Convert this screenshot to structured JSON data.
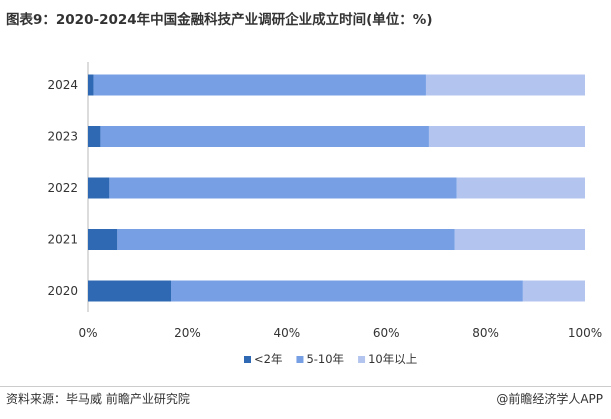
{
  "title": "图表9：2020-2024年中国金融科技产业调研企业成立时间(单位：%)",
  "source": "资料来源：毕马威 前瞻产业研究院",
  "brand": "@前瞻经济学人APP",
  "chart_data": {
    "type": "bar",
    "orientation": "horizontal",
    "stacked": true,
    "categories": [
      "2024",
      "2023",
      "2022",
      "2021",
      "2020"
    ],
    "series": [
      {
        "name": "<2年",
        "color": "#2f69b3",
        "values": [
          1.1,
          2.5,
          4.3,
          5.9,
          16.7
        ]
      },
      {
        "name": "5-10年",
        "color": "#769fe4",
        "values": [
          66.9,
          66.1,
          69.9,
          67.9,
          70.8
        ]
      },
      {
        "name": "10年以上",
        "color": "#b3c5ee",
        "values": [
          32.0,
          31.4,
          25.8,
          26.2,
          12.5
        ]
      }
    ],
    "xlim": [
      0,
      100
    ],
    "xticks": [
      "0%",
      "20%",
      "40%",
      "60%",
      "80%",
      "100%"
    ],
    "legend": "bottom",
    "grid": false
  }
}
